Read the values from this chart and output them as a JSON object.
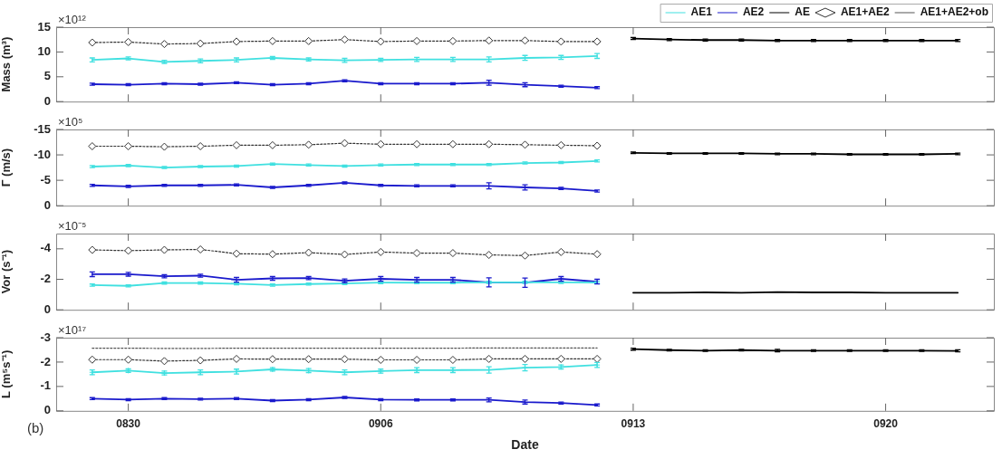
{
  "chart_data": [
    {
      "type": "line",
      "ylabel": "Mass (m³)",
      "annotations": [
        "×10¹²"
      ],
      "legend": "top right",
      "tick_labels": "y",
      "xlim": [
        "--08-28",
        "--09-23"
      ],
      "xticks": [
        {
          "value": "--08-30",
          "label": null
        },
        {
          "value": "--09-06",
          "label": null
        },
        {
          "value": "--09-13",
          "label": null
        },
        {
          "value": "--09-20",
          "label": null
        }
      ],
      "ylim": [
        0,
        15
      ],
      "yticks": [
        0,
        5,
        10,
        15
      ],
      "series": [
        {
          "name": "AE1",
          "color": "#40e0e0",
          "line_style": "solid",
          "x": [
            "--08-29",
            "--08-30",
            "--08-31",
            "--09-01",
            "--09-02",
            "--09-03",
            "--09-04",
            "--09-05",
            "--09-06",
            "--09-07",
            "--09-08",
            "--09-09",
            "--09-10",
            "--09-11",
            "--09-12"
          ],
          "values": [
            8.4,
            8.7,
            8.0,
            8.2,
            8.4,
            8.8,
            8.5,
            8.3,
            8.4,
            8.5,
            8.5,
            8.5,
            8.8,
            8.9,
            9.2
          ],
          "errors": [
            0.4,
            0.3,
            0.3,
            0.4,
            0.4,
            0.3,
            0.3,
            0.4,
            0.3,
            0.4,
            0.4,
            0.5,
            0.5,
            0.4,
            0.5
          ]
        },
        {
          "name": "AE2",
          "color": "#1a1acc",
          "line_style": "solid",
          "x": [
            "--08-29",
            "--08-30",
            "--08-31",
            "--09-01",
            "--09-02",
            "--09-03",
            "--09-04",
            "--09-05",
            "--09-06",
            "--09-07",
            "--09-08",
            "--09-09",
            "--09-10",
            "--09-11",
            "--09-12"
          ],
          "values": [
            3.5,
            3.4,
            3.6,
            3.5,
            3.8,
            3.4,
            3.6,
            4.2,
            3.6,
            3.6,
            3.6,
            3.8,
            3.4,
            3.1,
            2.8
          ],
          "errors": [
            0.2,
            0.2,
            0.2,
            0.2,
            0.2,
            0.2,
            0.2,
            0.2,
            0.2,
            0.2,
            0.2,
            0.5,
            0.4,
            0.2,
            0.2
          ]
        },
        {
          "name": "AE",
          "color": "#000000",
          "line_style": "solid",
          "x": [
            "--09-13",
            "--09-14",
            "--09-15",
            "--09-16",
            "--09-17",
            "--09-18",
            "--09-19",
            "--09-20",
            "--09-21",
            "--09-22"
          ],
          "values": [
            12.7,
            12.5,
            12.4,
            12.4,
            12.3,
            12.3,
            12.3,
            12.3,
            12.3,
            12.3
          ],
          "errors": [
            0.2,
            0.2,
            0.2,
            0.2,
            0.2,
            0.2,
            0.2,
            0.2,
            0.2,
            0.2
          ]
        },
        {
          "name": "AE1+AE2",
          "color": "#333333",
          "marker": "diamond",
          "line_style": "dotted",
          "x": [
            "--08-29",
            "--08-30",
            "--08-31",
            "--09-01",
            "--09-02",
            "--09-03",
            "--09-04",
            "--09-05",
            "--09-06",
            "--09-07",
            "--09-08",
            "--09-09",
            "--09-10",
            "--09-11",
            "--09-12"
          ],
          "values": [
            11.9,
            12.0,
            11.6,
            11.7,
            12.1,
            12.2,
            12.2,
            12.5,
            12.1,
            12.2,
            12.2,
            12.3,
            12.3,
            12.1,
            12.1
          ]
        },
        {
          "name": "AE1+AE2+ob",
          "color": "#555555",
          "marker": "none",
          "line_style": "dotted"
        }
      ]
    },
    {
      "type": "line",
      "ylabel": "Γ (m/s)",
      "annotations": [
        "×10⁵"
      ],
      "tick_labels": "y",
      "xlim": [
        "--08-28",
        "--09-23"
      ],
      "xticks": [
        {
          "value": "--08-30",
          "label": null
        },
        {
          "value": "--09-06",
          "label": null
        },
        {
          "value": "--09-13",
          "label": null
        },
        {
          "value": "--09-20",
          "label": null
        }
      ],
      "ylim": [
        0,
        -15
      ],
      "yticks": [
        0,
        -5,
        -10,
        -15
      ],
      "series": [
        {
          "color": "#40e0e0",
          "line_style": "solid",
          "x": [
            "--08-29",
            "--08-30",
            "--08-31",
            "--09-01",
            "--09-02",
            "--09-03",
            "--09-04",
            "--09-05",
            "--09-06",
            "--09-07",
            "--09-08",
            "--09-09",
            "--09-10",
            "--09-11",
            "--09-12"
          ],
          "values": [
            -7.7,
            -7.9,
            -7.5,
            -7.7,
            -7.8,
            -8.2,
            -8.0,
            -7.8,
            -8.0,
            -8.1,
            -8.1,
            -8.1,
            -8.4,
            -8.5,
            -8.8
          ],
          "errors": [
            0.2,
            0.2,
            0.2,
            0.2,
            0.2,
            0.2,
            0.2,
            0.2,
            0.2,
            0.2,
            0.2,
            0.2,
            0.2,
            0.2,
            0.2
          ]
        },
        {
          "color": "#1a1acc",
          "line_style": "solid",
          "x": [
            "--08-29",
            "--08-30",
            "--08-31",
            "--09-01",
            "--09-02",
            "--09-03",
            "--09-04",
            "--09-05",
            "--09-06",
            "--09-07",
            "--09-08",
            "--09-09",
            "--09-10",
            "--09-11",
            "--09-12"
          ],
          "values": [
            -4.0,
            -3.8,
            -4.0,
            -4.0,
            -4.1,
            -3.6,
            -4.0,
            -4.5,
            -4.0,
            -3.9,
            -3.9,
            -3.9,
            -3.6,
            -3.4,
            -2.9
          ],
          "errors": [
            0.2,
            0.2,
            0.2,
            0.2,
            0.2,
            0.2,
            0.2,
            0.2,
            0.2,
            0.2,
            0.2,
            0.6,
            0.5,
            0.2,
            0.2
          ]
        },
        {
          "color": "#000000",
          "line_style": "solid",
          "x": [
            "--09-13",
            "--09-14",
            "--09-15",
            "--09-16",
            "--09-17",
            "--09-18",
            "--09-19",
            "--09-20",
            "--09-21",
            "--09-22"
          ],
          "values": [
            -10.4,
            -10.3,
            -10.3,
            -10.3,
            -10.2,
            -10.2,
            -10.1,
            -10.1,
            -10.1,
            -10.2
          ],
          "errors": [
            0.15,
            0.15,
            0.15,
            0.15,
            0.15,
            0.15,
            0.15,
            0.15,
            0.15,
            0.15
          ]
        },
        {
          "color": "#333333",
          "marker": "diamond",
          "line_style": "dotted",
          "x": [
            "--08-29",
            "--08-30",
            "--08-31",
            "--09-01",
            "--09-02",
            "--09-03",
            "--09-04",
            "--09-05",
            "--09-06",
            "--09-07",
            "--09-08",
            "--09-09",
            "--09-10",
            "--09-11",
            "--09-12"
          ],
          "values": [
            -11.7,
            -11.7,
            -11.6,
            -11.7,
            -11.9,
            -11.9,
            -12.0,
            -12.3,
            -12.1,
            -12.1,
            -12.1,
            -12.1,
            -12.0,
            -11.9,
            -11.8
          ]
        }
      ]
    },
    {
      "type": "line",
      "ylabel": "Vor (s⁻¹)",
      "annotations": [
        "×10⁻⁵"
      ],
      "tick_labels": "y",
      "xlim": [
        "--08-28",
        "--09-23"
      ],
      "xticks": [
        {
          "value": "--08-30",
          "label": null
        },
        {
          "value": "--09-06",
          "label": null
        },
        {
          "value": "--09-13",
          "label": null
        },
        {
          "value": "--09-20",
          "label": null
        }
      ],
      "ylim": [
        0,
        -5
      ],
      "yticks": [
        0,
        -2,
        -4
      ],
      "series": [
        {
          "color": "#40e0e0",
          "line_style": "solid",
          "x": [
            "--08-29",
            "--08-30",
            "--08-31",
            "--09-01",
            "--09-02",
            "--09-03",
            "--09-04",
            "--09-05",
            "--09-06",
            "--09-07",
            "--09-08",
            "--09-09",
            "--09-10",
            "--09-11",
            "--09-12"
          ],
          "values": [
            -1.62,
            -1.57,
            -1.76,
            -1.76,
            -1.71,
            -1.62,
            -1.69,
            -1.73,
            -1.78,
            -1.78,
            -1.78,
            -1.8,
            -1.8,
            -1.8,
            -1.78
          ],
          "errors": [
            0.07,
            0.07,
            0.07,
            0.07,
            0.07,
            0.07,
            0.07,
            0.07,
            0.07,
            0.07,
            0.07,
            0.07,
            0.07,
            0.07,
            0.07
          ]
        },
        {
          "color": "#1a1acc",
          "line_style": "solid",
          "x": [
            "--08-29",
            "--08-30",
            "--08-31",
            "--09-01",
            "--09-02",
            "--09-03",
            "--09-04",
            "--09-05",
            "--09-06",
            "--09-07",
            "--09-08",
            "--09-09",
            "--09-10",
            "--09-11",
            "--09-12"
          ],
          "values": [
            -2.33,
            -2.33,
            -2.2,
            -2.24,
            -1.97,
            -2.06,
            -2.08,
            -1.9,
            -2.03,
            -1.97,
            -1.97,
            -1.8,
            -1.78,
            -2.03,
            -1.85
          ],
          "errors": [
            0.15,
            0.12,
            0.1,
            0.1,
            0.15,
            0.12,
            0.1,
            0.12,
            0.15,
            0.15,
            0.15,
            0.3,
            0.3,
            0.15,
            0.15
          ]
        },
        {
          "color": "#000000",
          "line_style": "solid",
          "x": [
            "--09-13",
            "--09-14",
            "--09-15",
            "--09-16",
            "--09-17",
            "--09-18",
            "--09-19",
            "--09-20",
            "--09-21",
            "--09-22"
          ],
          "values": [
            -1.12,
            -1.12,
            -1.14,
            -1.12,
            -1.16,
            -1.14,
            -1.14,
            -1.12,
            -1.12,
            -1.12
          ]
        },
        {
          "color": "#333333",
          "marker": "diamond",
          "line_style": "dotted",
          "x": [
            "--08-29",
            "--08-30",
            "--08-31",
            "--09-01",
            "--09-02",
            "--09-03",
            "--09-04",
            "--09-05",
            "--09-06",
            "--09-07",
            "--09-08",
            "--09-09",
            "--09-10",
            "--09-11",
            "--09-12"
          ],
          "values": [
            -3.93,
            -3.88,
            -3.93,
            -3.96,
            -3.68,
            -3.65,
            -3.75,
            -3.63,
            -3.79,
            -3.72,
            -3.72,
            -3.6,
            -3.56,
            -3.79,
            -3.65
          ]
        }
      ]
    },
    {
      "type": "line",
      "ylabel": "L (m⁵s⁻¹)",
      "xlabel": "Date",
      "annotations": [
        "×10¹⁷",
        "(b)"
      ],
      "xlim": [
        "--08-28",
        "--09-23"
      ],
      "xticks": [
        {
          "value": "--08-30",
          "label": "0830"
        },
        {
          "value": "--09-06",
          "label": "0906"
        },
        {
          "value": "--09-13",
          "label": "0913"
        },
        {
          "value": "--09-20",
          "label": "0920"
        }
      ],
      "ylim": [
        0,
        -3
      ],
      "yticks": [
        0,
        -1,
        -2,
        -3
      ],
      "series": [
        {
          "color": "#40e0e0",
          "marker": "cross",
          "line_style": "solid",
          "x": [
            "--08-29",
            "--08-30",
            "--08-31",
            "--09-01",
            "--09-02",
            "--09-03",
            "--09-04",
            "--09-05",
            "--09-06",
            "--09-07",
            "--09-08",
            "--09-09",
            "--09-10",
            "--09-11",
            "--09-12"
          ],
          "values": [
            -1.58,
            -1.65,
            -1.55,
            -1.58,
            -1.61,
            -1.7,
            -1.65,
            -1.58,
            -1.63,
            -1.67,
            -1.67,
            -1.68,
            -1.77,
            -1.8,
            -1.88
          ],
          "errors": [
            0.1,
            0.07,
            0.08,
            0.1,
            0.1,
            0.07,
            0.08,
            0.1,
            0.08,
            0.1,
            0.1,
            0.13,
            0.13,
            0.08,
            0.1
          ]
        },
        {
          "color": "#1a1acc",
          "line_style": "solid",
          "x": [
            "--08-29",
            "--08-30",
            "--08-31",
            "--09-01",
            "--09-02",
            "--09-03",
            "--09-04",
            "--09-05",
            "--09-06",
            "--09-07",
            "--09-08",
            "--09-09",
            "--09-10",
            "--09-11",
            "--09-12"
          ],
          "values": [
            -0.5,
            -0.46,
            -0.5,
            -0.48,
            -0.5,
            -0.42,
            -0.46,
            -0.55,
            -0.46,
            -0.45,
            -0.45,
            -0.45,
            -0.36,
            -0.32,
            -0.24
          ],
          "errors": [
            0.04,
            0.04,
            0.04,
            0.04,
            0.04,
            0.04,
            0.04,
            0.04,
            0.04,
            0.04,
            0.04,
            0.08,
            0.08,
            0.04,
            0.04
          ]
        },
        {
          "color": "#000000",
          "line_style": "solid",
          "x": [
            "--09-13",
            "--09-14",
            "--09-15",
            "--09-16",
            "--09-17",
            "--09-18",
            "--09-19",
            "--09-20",
            "--09-21",
            "--09-22"
          ],
          "values": [
            -2.53,
            -2.49,
            -2.47,
            -2.49,
            -2.47,
            -2.47,
            -2.47,
            -2.47,
            -2.47,
            -2.46
          ],
          "errors": [
            0.04,
            0.03,
            0.03,
            0.03,
            0.05,
            0.03,
            0.03,
            0.03,
            0.03,
            0.04
          ]
        },
        {
          "color": "#333333",
          "marker": "diamond",
          "line_style": "dotted",
          "x": [
            "--08-29",
            "--08-30",
            "--08-31",
            "--09-01",
            "--09-02",
            "--09-03",
            "--09-04",
            "--09-05",
            "--09-06",
            "--09-07",
            "--09-08",
            "--09-09",
            "--09-10",
            "--09-11",
            "--09-12"
          ],
          "values": [
            -2.1,
            -2.1,
            -2.04,
            -2.07,
            -2.13,
            -2.12,
            -2.12,
            -2.12,
            -2.09,
            -2.09,
            -2.09,
            -2.13,
            -2.13,
            -2.13,
            -2.13
          ]
        },
        {
          "color": "#555555",
          "marker": "none",
          "line_style": "dotted",
          "x": [
            "--08-29",
            "--08-30",
            "--08-31",
            "--09-01",
            "--09-02",
            "--09-03",
            "--09-04",
            "--09-05",
            "--09-06",
            "--09-07",
            "--09-08",
            "--09-09",
            "--09-10",
            "--09-11",
            "--09-12"
          ],
          "values": [
            -2.57,
            -2.57,
            -2.56,
            -2.56,
            -2.57,
            -2.57,
            -2.57,
            -2.57,
            -2.57,
            -2.57,
            -2.57,
            -2.58,
            -2.58,
            -2.58,
            -2.58
          ]
        }
      ]
    }
  ]
}
